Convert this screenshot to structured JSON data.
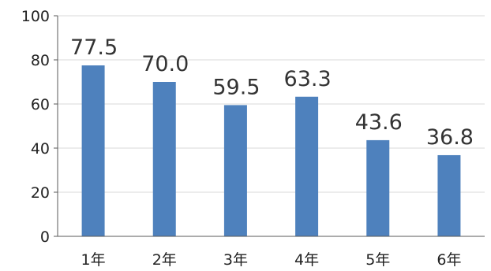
{
  "chart_data": {
    "type": "bar",
    "categories": [
      "1年",
      "2年",
      "3年",
      "4年",
      "5年",
      "6年"
    ],
    "values": [
      77.5,
      70.0,
      59.5,
      63.3,
      43.6,
      36.8
    ],
    "value_labels": [
      "77.5",
      "70.0",
      "59.5",
      "63.3",
      "43.6",
      "36.8"
    ],
    "title": "",
    "xlabel": "",
    "ylabel": "",
    "ylim": [
      0,
      100
    ],
    "yticks": [
      0,
      20,
      40,
      60,
      80,
      100
    ],
    "ytick_labels": [
      "0",
      "20",
      "40",
      "60",
      "80",
      "100"
    ],
    "grid": true,
    "legend": "none",
    "colors": {
      "bar": "#4e81bd",
      "grid": "#d9d9d9",
      "axis": "#595959",
      "text": "#222222"
    }
  }
}
